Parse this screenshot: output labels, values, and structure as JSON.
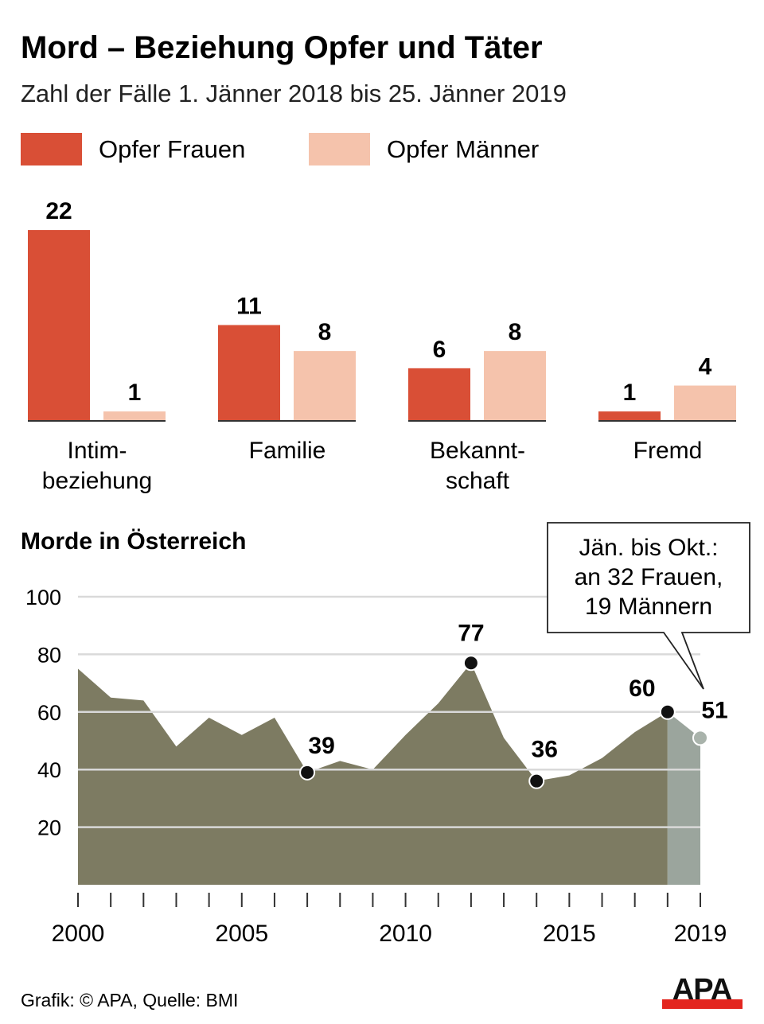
{
  "title": "Mord – Beziehung Opfer und Täter",
  "subtitle": "Zahl der Fälle 1. Jänner 2018 bis 25. Jänner 2019",
  "colors": {
    "frauen": "#d94f36",
    "maenner": "#f5c3ac",
    "area": "#7d7b62",
    "area_partial": "#9ba59d",
    "logo_red": "#e3261f"
  },
  "chart_data": [
    {
      "type": "bar",
      "legend": [
        "Opfer Frauen",
        "Opfer Männer"
      ],
      "legend_placement": "top-left",
      "categories": [
        [
          "Intim-",
          "beziehung"
        ],
        [
          "Familie"
        ],
        [
          "Bekannt-",
          "schaft"
        ],
        [
          "Fremd"
        ]
      ],
      "series": [
        {
          "name": "Opfer Frauen",
          "values": [
            22,
            11,
            6,
            1
          ]
        },
        {
          "name": "Opfer Männer",
          "values": [
            1,
            8,
            8,
            4
          ]
        }
      ]
    },
    {
      "type": "area",
      "title": "Morde in Österreich",
      "x": [
        2000,
        2001,
        2002,
        2003,
        2004,
        2005,
        2006,
        2007,
        2008,
        2009,
        2010,
        2011,
        2012,
        2013,
        2014,
        2015,
        2016,
        2017,
        2018,
        2019
      ],
      "values": [
        75,
        65,
        64,
        48,
        58,
        52,
        58,
        39,
        43,
        40,
        52,
        63,
        77,
        51,
        36,
        38,
        44,
        53,
        60,
        51
      ],
      "labeled_points": [
        {
          "x": 2007,
          "label": "39"
        },
        {
          "x": 2012,
          "label": "77"
        },
        {
          "x": 2014,
          "label": "36"
        },
        {
          "x": 2018,
          "label": "60"
        },
        {
          "x": 2019,
          "label": "51"
        }
      ],
      "ylim": [
        0,
        100
      ],
      "yticks": [
        "20",
        "40",
        "60",
        "80",
        "100"
      ],
      "xticks": [
        "2000",
        "2005",
        "2010",
        "2015",
        "2019"
      ],
      "grid": true,
      "partial_year": 2019,
      "annotation": [
        "Jän. bis Okt.:",
        "an 32 Frauen,",
        "19 Männern"
      ]
    }
  ],
  "footer": {
    "credit": "Grafik: © APA, Quelle: BMI",
    "logo": "APA"
  }
}
